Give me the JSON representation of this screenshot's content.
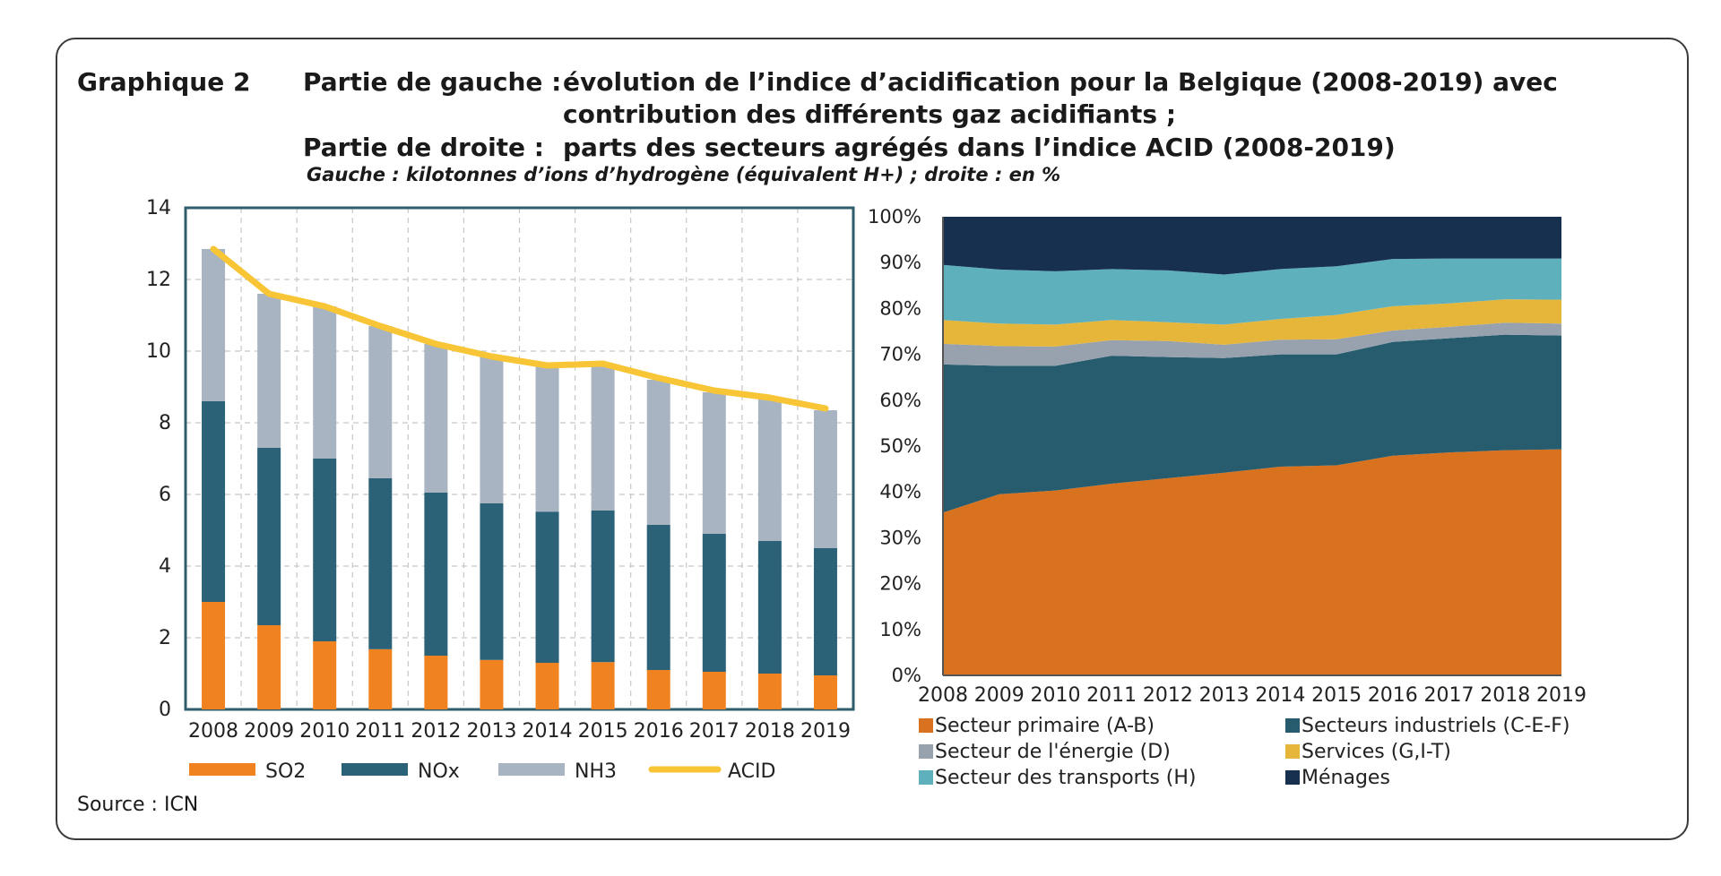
{
  "header": {
    "graph_label": "Graphique 2",
    "left_label": "Partie de gauche :",
    "left_title_line1": "évolution de l’indice d’acidification pour la Belgique (2008-2019) avec",
    "left_title_line2": "contribution des différents gaz acidifiants ;",
    "right_label": "Partie de droite :",
    "right_title": "parts des secteurs agrégés dans l’indice ACID (2008-2019)",
    "units": "Gauche : kilotonnes d’ions d’hydrogène (équivalent H+) ; droite : en %"
  },
  "source": "Source : ICN",
  "colors": {
    "so2": "#f08220",
    "nox": "#2b6278",
    "nh3": "#a9b4c2",
    "acid": "#f7c535",
    "primaire": "#d9721e",
    "industriels": "#265c6e",
    "energie": "#98a2ae",
    "services": "#e6b63a",
    "transports": "#5fb0bd",
    "menages": "#17304f"
  },
  "chart_data": [
    {
      "type": "bar",
      "stacked": true,
      "categories": [
        "2008",
        "2009",
        "2010",
        "2011",
        "2012",
        "2013",
        "2014",
        "2015",
        "2016",
        "2017",
        "2018",
        "2019"
      ],
      "series": [
        {
          "name": "SO2",
          "values": [
            3.0,
            2.35,
            1.9,
            1.68,
            1.5,
            1.38,
            1.3,
            1.32,
            1.1,
            1.05,
            1.0,
            0.95
          ]
        },
        {
          "name": "NOx",
          "values": [
            5.6,
            4.95,
            5.1,
            4.77,
            4.55,
            4.37,
            4.22,
            4.23,
            4.05,
            3.85,
            3.7,
            3.55
          ]
        },
        {
          "name": "NH3",
          "values": [
            4.25,
            4.3,
            4.25,
            4.25,
            4.15,
            4.1,
            4.1,
            4.05,
            4.05,
            3.95,
            3.95,
            3.85
          ]
        }
      ],
      "line_series": {
        "name": "ACID",
        "values": [
          12.85,
          11.6,
          11.25,
          10.7,
          10.2,
          9.85,
          9.6,
          9.65,
          9.25,
          8.9,
          8.7,
          8.4
        ]
      },
      "y_ticks": [
        "0",
        "2",
        "4",
        "6",
        "8",
        "10",
        "12",
        "14"
      ],
      "ylim": [
        0,
        14
      ],
      "grid": true,
      "legend_position": "bottom"
    },
    {
      "type": "area",
      "stacked": true,
      "normalized": true,
      "x": [
        "2008",
        "2009",
        "2010",
        "2011",
        "2012",
        "2013",
        "2014",
        "2015",
        "2016",
        "2017",
        "2018",
        "2019"
      ],
      "series": [
        {
          "name": "Secteur primaire (A-B)",
          "values": [
            35.5,
            39.5,
            40.3,
            41.8,
            43.0,
            44.2,
            45.5,
            45.8,
            47.9,
            48.6,
            49.1,
            49.3
          ]
        },
        {
          "name": "Secteurs industriels (C-E-F)",
          "values": [
            32.3,
            28.0,
            27.2,
            27.9,
            26.4,
            25.0,
            24.5,
            24.2,
            24.8,
            24.9,
            25.2,
            24.8
          ]
        },
        {
          "name": "Secteur de l'énergie (D)",
          "values": [
            4.5,
            4.3,
            4.2,
            3.4,
            3.5,
            2.9,
            3.2,
            3.3,
            2.5,
            2.5,
            2.6,
            2.6
          ]
        },
        {
          "name": "Services (G,I-T)",
          "values": [
            5.2,
            4.9,
            4.8,
            4.4,
            4.1,
            4.4,
            4.5,
            5.3,
            5.3,
            5.1,
            5.1,
            5.2
          ]
        },
        {
          "name": "Secteur des transports (H)",
          "values": [
            12.0,
            11.8,
            11.6,
            11.1,
            11.3,
            10.9,
            10.9,
            10.6,
            10.3,
            9.8,
            8.9,
            9.0
          ]
        },
        {
          "name": "Ménages",
          "values": [
            10.5,
            11.5,
            11.9,
            11.4,
            11.7,
            12.6,
            11.4,
            10.8,
            9.2,
            9.1,
            9.1,
            9.1
          ]
        }
      ],
      "y_ticks": [
        "0%",
        "10%",
        "20%",
        "30%",
        "40%",
        "50%",
        "60%",
        "70%",
        "80%",
        "90%",
        "100%"
      ],
      "ylim": [
        0,
        100
      ],
      "grid": false,
      "legend_position": "bottom"
    }
  ]
}
